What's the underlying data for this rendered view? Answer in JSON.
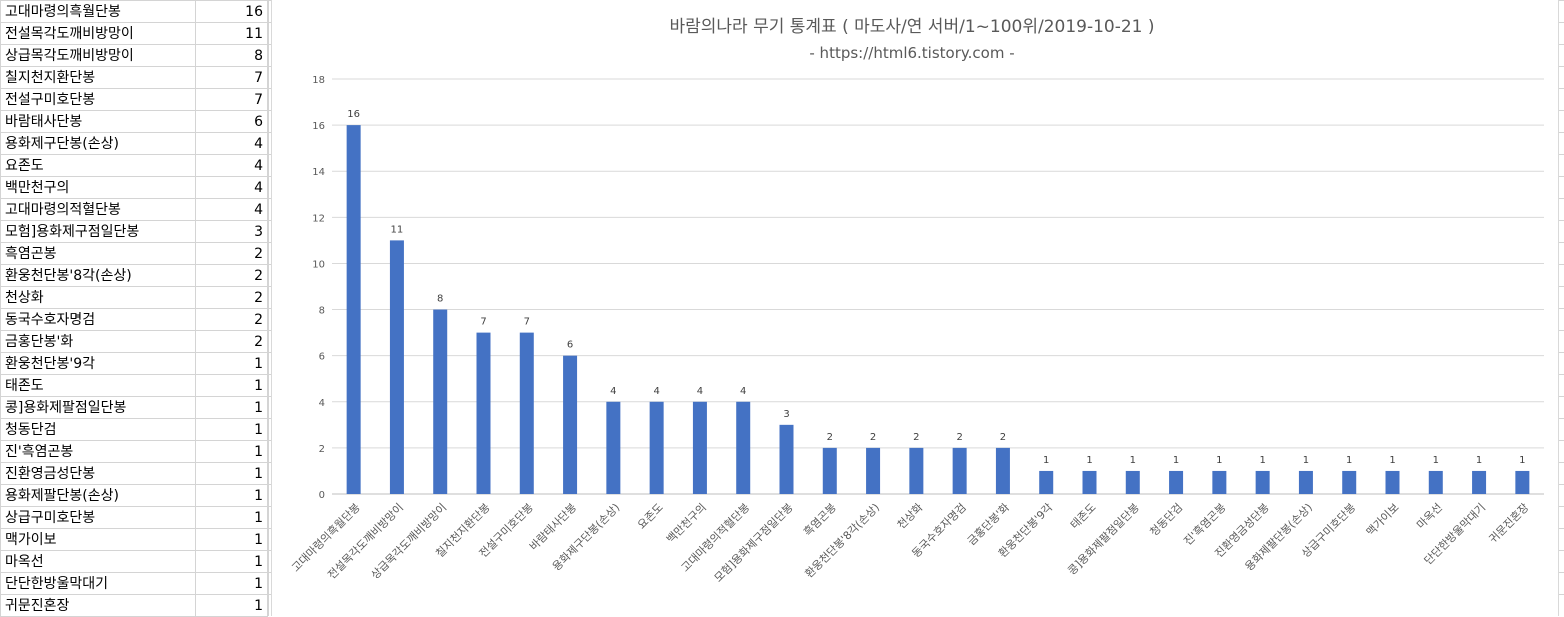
{
  "sheet": {
    "rows": [
      {
        "name": "고대마령의흑월단봉",
        "value": 16
      },
      {
        "name": "전설목각도깨비방망이",
        "value": 11
      },
      {
        "name": "상급목각도깨비방망이",
        "value": 8
      },
      {
        "name": "칠지천지환단봉",
        "value": 7
      },
      {
        "name": "전설구미호단봉",
        "value": 7
      },
      {
        "name": "바람태사단봉",
        "value": 6
      },
      {
        "name": "용화제구단봉(손상)",
        "value": 4
      },
      {
        "name": "요존도",
        "value": 4
      },
      {
        "name": "백만천구의",
        "value": 4
      },
      {
        "name": "고대마령의적혈단봉",
        "value": 4
      },
      {
        "name": "모험]용화제구점일단봉",
        "value": 3
      },
      {
        "name": "흑염곤봉",
        "value": 2
      },
      {
        "name": "환웅천단봉'8각(손상)",
        "value": 2
      },
      {
        "name": "천상화",
        "value": 2
      },
      {
        "name": "동국수호자명검",
        "value": 2
      },
      {
        "name": "금홍단봉'화",
        "value": 2
      },
      {
        "name": "환웅천단봉'9각",
        "value": 1
      },
      {
        "name": "태존도",
        "value": 1
      },
      {
        "name": "콩]용화제팔점일단봉",
        "value": 1
      },
      {
        "name": "청동단검",
        "value": 1
      },
      {
        "name": "진'흑염곤봉",
        "value": 1
      },
      {
        "name": "진환영금성단봉",
        "value": 1
      },
      {
        "name": "용화제팔단봉(손상)",
        "value": 1
      },
      {
        "name": "상급구미호단봉",
        "value": 1
      },
      {
        "name": "맥가이보",
        "value": 1
      },
      {
        "name": "마옥선",
        "value": 1
      },
      {
        "name": "단단한방울막대기",
        "value": 1
      },
      {
        "name": "귀문진혼장",
        "value": 1
      }
    ]
  },
  "chart_data": {
    "type": "bar",
    "title": "바람의나라 무기 통계표 ( 마도사/연 서버/1~100위/2019-10-21 )",
    "subtitle": "- https://html6.tistory.com -",
    "categories": [
      "고대마령의흑월단봉",
      "전설목각도깨비방망이",
      "상급목각도깨비방망이",
      "칠지천지환단봉",
      "전설구미호단봉",
      "바람태사단봉",
      "용화제구단봉(손상)",
      "요존도",
      "백만천구의",
      "고대마령의적혈단봉",
      "모험]용화제구점일단봉",
      "흑염곤봉",
      "환웅천단봉'8각(손상)",
      "천상화",
      "동국수호자명검",
      "금홍단봉'화",
      "환웅천단봉'9각",
      "태존도",
      "콩]용화제팔점일단봉",
      "청동단검",
      "진'흑염곤봉",
      "진환영금성단봉",
      "용화제팔단봉(손상)",
      "상급구미호단봉",
      "맥가이보",
      "마옥선",
      "단단한방울막대기",
      "귀문진혼장"
    ],
    "values": [
      16,
      11,
      8,
      7,
      7,
      6,
      4,
      4,
      4,
      4,
      3,
      2,
      2,
      2,
      2,
      2,
      1,
      1,
      1,
      1,
      1,
      1,
      1,
      1,
      1,
      1,
      1,
      1
    ],
    "ylim": [
      0,
      18
    ],
    "yticks": [
      0,
      2,
      4,
      6,
      8,
      10,
      12,
      14,
      16,
      18
    ],
    "grid": true,
    "data_labels": true,
    "colors": {
      "bar": "#4472c4",
      "grid": "#d9d9d9",
      "text": "#595959"
    }
  }
}
